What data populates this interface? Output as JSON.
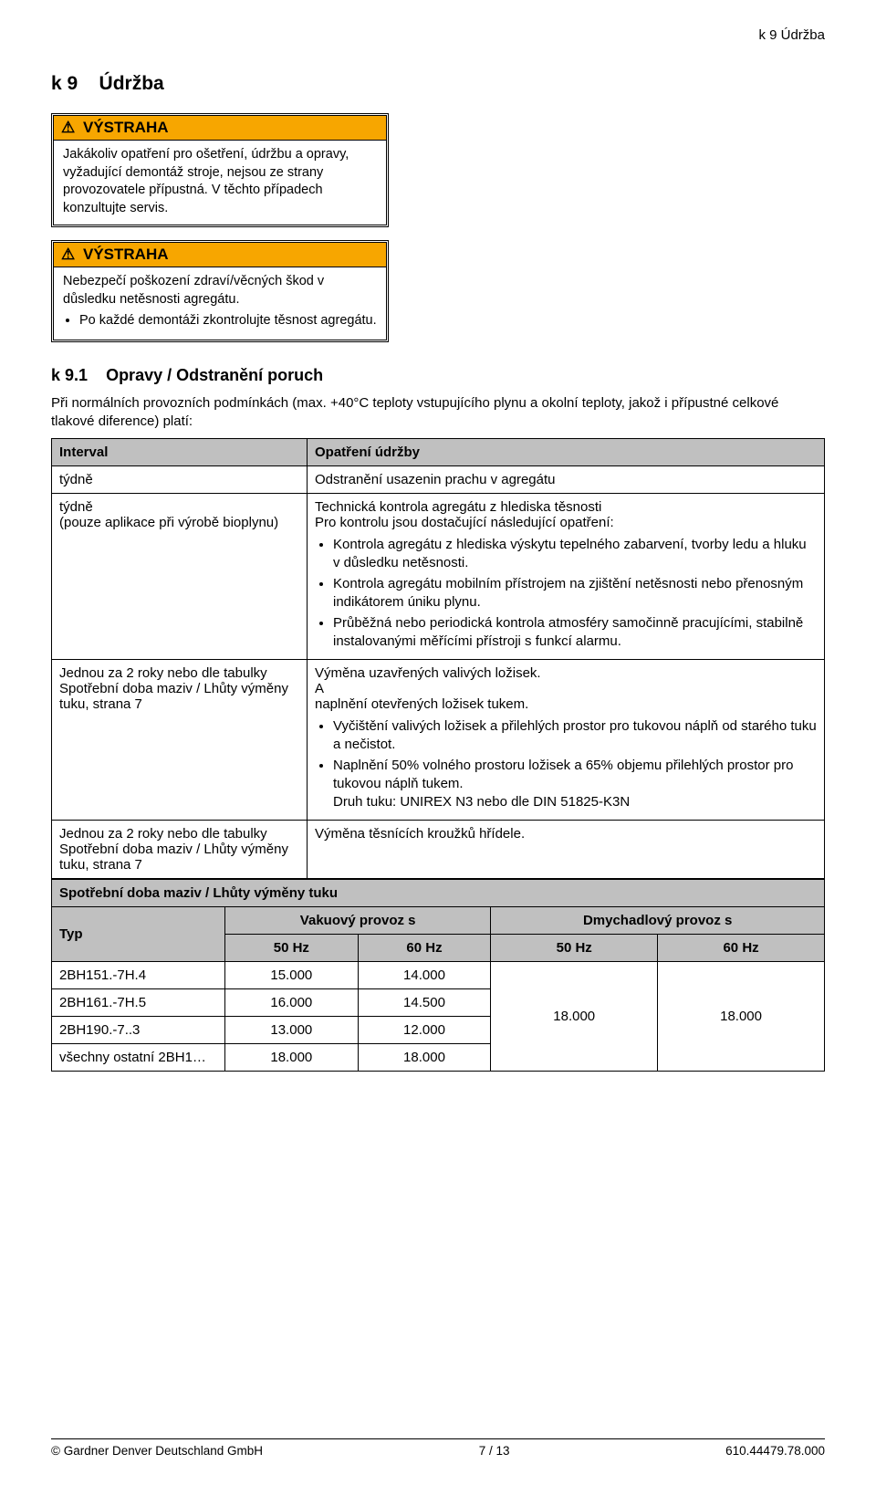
{
  "header_right": "k 9  Údržba",
  "section": {
    "num": "k 9",
    "title": "Údržba"
  },
  "warn1": {
    "badge": "VÝSTRAHA",
    "text": "Jakákoliv opatření pro ošetření, údržbu a opravy, vyžadující demontáž stroje, nejsou ze strany provozovatele přípustná. V těchto případech konzultujte servis."
  },
  "warn2": {
    "badge": "VÝSTRAHA",
    "text": "Nebezpečí poškození zdraví/věcných škod v důsledku netěsnosti agregátu.",
    "bullet": "Po každé demontáži zkontrolujte těsnost agregátu."
  },
  "subsection": {
    "num": "k 9.1",
    "title": "Opravy / Odstranění poruch"
  },
  "intro": "Při normálních provozních podmínkách (max. +40°C teploty vstupujícího plynu a okolní teploty, jakož i přípustné celkové tlakové diference) platí:",
  "maint": {
    "col_interval": "Interval",
    "col_action": "Opatření údržby",
    "rows": [
      {
        "interval": "týdně",
        "action": "Odstranění usazenin prachu v agregátu"
      },
      {
        "interval_line1": "týdně",
        "interval_line2": "(pouze aplikace při výrobě bioplynu)",
        "action_lead1": "Technická kontrola agregátu z hlediska těsnosti",
        "action_lead2": "Pro kontrolu jsou dostačující následující opatření:",
        "bullets": [
          "Kontrola agregátu z hlediska výskytu tepelného zabarvení, tvorby ledu a hluku v důsledku netěsnosti.",
          "Kontrola agregátu mobilním přístrojem na zjištění netěsnosti nebo přenosným indikátorem úniku plynu.",
          "Průběžná nebo periodická kontrola atmosféry samočinně pracujícími, stabilně instalovanými měřícími přístroji s funkcí alarmu."
        ]
      },
      {
        "interval": "Jednou za 2 roky nebo dle tabulky Spotřební doba maziv / Lhůty výměny tuku, strana 7",
        "action_line1": "Výměna uzavřených valivých ložisek.",
        "action_line2": "A",
        "action_line3": "naplnění otevřených ložisek tukem.",
        "bullets": [
          "Vyčištění valivých ložisek a přilehlých prostor pro tukovou náplň od starého tuku a nečistot.",
          "Naplnění 50% volného prostoru ložisek a 65% objemu přilehlých prostor pro tukovou náplň tukem.\nDruh tuku: UNIREX N3 nebo dle DIN 51825-K3N"
        ]
      },
      {
        "interval": "Jednou za 2 roky nebo dle tabulky Spotřební doba maziv / Lhůty výměny tuku, strana 7",
        "action": "Výměna těsnících kroužků hřídele."
      }
    ]
  },
  "grease": {
    "title": "Spotřební doba maziv / Lhůty výměny tuku",
    "col_type": "Typ",
    "col_vac": "Vakuový provoz s",
    "col_blow": "Dmychadlový provoz s",
    "hz50": "50 Hz",
    "hz60": "60 Hz",
    "rows": [
      {
        "type": "2BH151.-7H.4",
        "v50": "15.000",
        "v60": "14.000"
      },
      {
        "type": "2BH161.-7H.5",
        "v50": "16.000",
        "v60": "14.500"
      },
      {
        "type": "2BH190.-7..3",
        "v50": "13.000",
        "v60": "12.000"
      },
      {
        "type": "všechny ostatní 2BH1…",
        "v50": "18.000",
        "v60": "18.000"
      }
    ],
    "blow50": "18.000",
    "blow60": "18.000"
  },
  "footer": {
    "left": "© Gardner Denver Deutschland GmbH",
    "center": "7 / 13",
    "right": "610.44479.78.000"
  }
}
